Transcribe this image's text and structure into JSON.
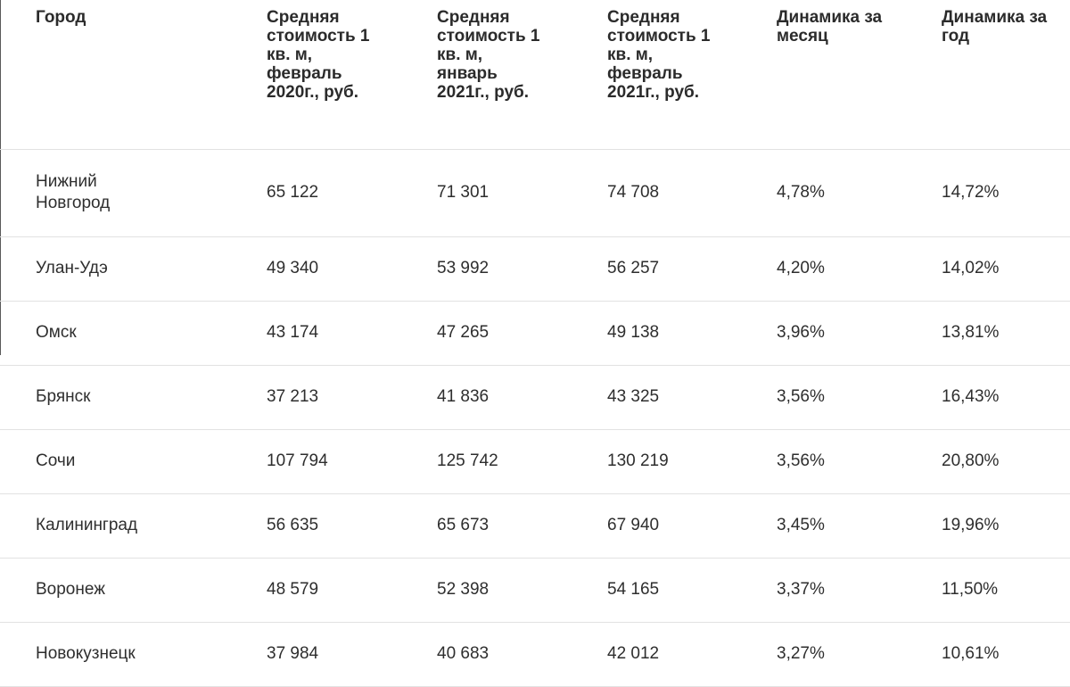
{
  "table": {
    "headers": [
      "Город",
      "Средняя стоимость 1 кв. м, февраль 2020г., руб.",
      "Средняя стоимость 1 кв. м, январь 2021г., руб.",
      "Средняя стоимость 1 кв. м, февраль 2021г., руб.",
      "Динамика за месяц",
      "Динамика за год"
    ],
    "rows": [
      [
        "Нижний Новгород",
        "65 122",
        "71 301",
        "74 708",
        "4,78%",
        "14,72%"
      ],
      [
        "Улан-Удэ",
        "49 340",
        "53 992",
        "56 257",
        "4,20%",
        "14,02%"
      ],
      [
        "Омск",
        "43 174",
        "47 265",
        "49 138",
        "3,96%",
        "13,81%"
      ],
      [
        "Брянск",
        "37 213",
        "41 836",
        "43 325",
        "3,56%",
        "16,43%"
      ],
      [
        "Сочи",
        "107 794",
        "125 742",
        "130 219",
        "3,56%",
        "20,80%"
      ],
      [
        "Калининград",
        "56 635",
        "65 673",
        "67 940",
        "3,45%",
        "19,96%"
      ],
      [
        "Воронеж",
        "48 579",
        "52 398",
        "54 165",
        "3,37%",
        "11,50%"
      ],
      [
        "Новокузнецк",
        "37 984",
        "40 683",
        "42 012",
        "3,27%",
        "10,61%"
      ]
    ]
  }
}
